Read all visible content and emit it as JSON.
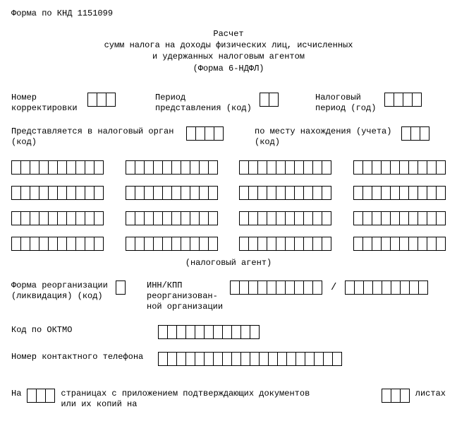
{
  "header": {
    "knd": "Форма по КНД 1151099"
  },
  "title": {
    "l1": "Расчет",
    "l2": "сумм налога на доходы физических лиц, исчисленных",
    "l3": "и удержанных налоговым агентом",
    "l4": "(Форма 6-НДФЛ)"
  },
  "row1": {
    "a_label": "Номер\nкорректировки",
    "a_cells": 3,
    "b_label": "Период\nпредставления (код)",
    "b_cells": 2,
    "c_label": "Налоговый\nпериод (год)",
    "c_cells": 4
  },
  "row2": {
    "a_label": "Представляется в налоговый орган\n(код)",
    "a_cells": 4,
    "b_label": "по месту нахождения (учета)\n(код)",
    "b_cells": 3
  },
  "long": {
    "groups_per_row": 4,
    "cells_per_group": 10,
    "rows": 4,
    "footer": "(налоговый агент)"
  },
  "reorg": {
    "left_label": "Форма реорганизации\n(ликвидация) (код)",
    "left_cells": 1,
    "mid_label": "ИНН/КПП\nреорганизован-\nной организации",
    "inn_cells": 10,
    "kpp_cells": 9
  },
  "oktmo": {
    "label": "Код по ОКТМО",
    "cells": 11
  },
  "phone": {
    "label": "Номер контактного телефона",
    "cells": 20
  },
  "footer": {
    "prefix": "На",
    "pages_cells": 3,
    "mid": "страницах с приложением подтверждающих документов\nили их копий на",
    "sheets_cells": 3,
    "suffix": "листах"
  }
}
